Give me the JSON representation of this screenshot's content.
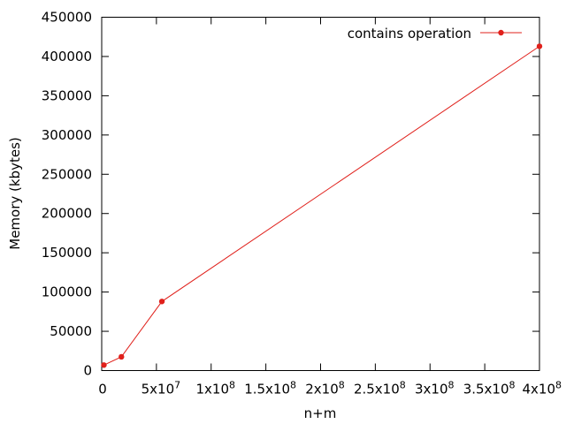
{
  "chart_data": {
    "type": "line",
    "title": "",
    "xlabel": "n+m",
    "ylabel": "Memory (kbytes)",
    "xlim": [
      0,
      400000000
    ],
    "ylim": [
      0,
      450000
    ],
    "grid": false,
    "legend_position": "top-right",
    "x_ticks": [
      {
        "value": 0,
        "mantissa": "0",
        "exponent": ""
      },
      {
        "value": 50000000,
        "mantissa": "5x10",
        "exponent": "7"
      },
      {
        "value": 100000000,
        "mantissa": "1x10",
        "exponent": "8"
      },
      {
        "value": 150000000,
        "mantissa": "1.5x10",
        "exponent": "8"
      },
      {
        "value": 200000000,
        "mantissa": "2x10",
        "exponent": "8"
      },
      {
        "value": 250000000,
        "mantissa": "2.5x10",
        "exponent": "8"
      },
      {
        "value": 300000000,
        "mantissa": "3x10",
        "exponent": "8"
      },
      {
        "value": 350000000,
        "mantissa": "3.5x10",
        "exponent": "8"
      },
      {
        "value": 400000000,
        "mantissa": "4x10",
        "exponent": "8"
      }
    ],
    "y_ticks": [
      {
        "value": 0,
        "label": "0"
      },
      {
        "value": 50000,
        "label": "50000"
      },
      {
        "value": 100000,
        "label": "100000"
      },
      {
        "value": 150000,
        "label": "150000"
      },
      {
        "value": 200000,
        "label": "200000"
      },
      {
        "value": 250000,
        "label": "250000"
      },
      {
        "value": 300000,
        "label": "300000"
      },
      {
        "value": 350000,
        "label": "350000"
      },
      {
        "value": 400000,
        "label": "400000"
      },
      {
        "value": 450000,
        "label": "450000"
      }
    ],
    "series": [
      {
        "name": "contains operation",
        "color": "#e0201b",
        "x": [
          2000000,
          18000000,
          55000000,
          400000000
        ],
        "y": [
          7000,
          17500,
          88000,
          413000
        ]
      }
    ]
  }
}
